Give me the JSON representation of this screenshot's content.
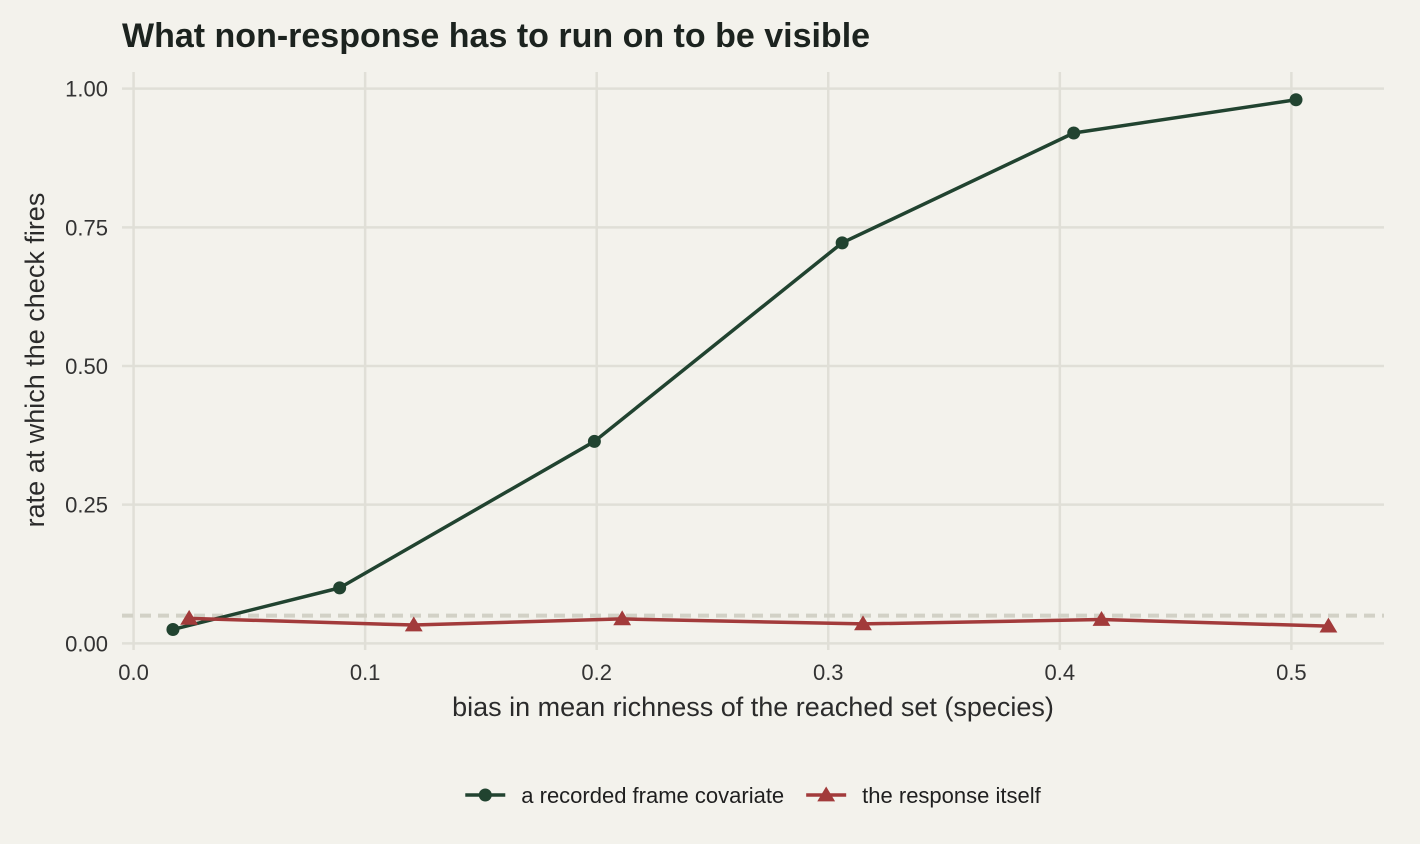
{
  "chart_data": {
    "type": "line",
    "title": "What non-response has to run on to be visible",
    "xlabel": "bias in mean richness of the reached set (species)",
    "ylabel": "rate at which the check fires",
    "xlim": [
      -0.005,
      0.54
    ],
    "ylim": [
      -0.012,
      1.03
    ],
    "x_ticks": [
      {
        "value": 0.0,
        "label": "0.0"
      },
      {
        "value": 0.1,
        "label": "0.1"
      },
      {
        "value": 0.2,
        "label": "0.2"
      },
      {
        "value": 0.3,
        "label": "0.3"
      },
      {
        "value": 0.4,
        "label": "0.4"
      },
      {
        "value": 0.5,
        "label": "0.5"
      }
    ],
    "y_ticks": [
      {
        "value": 0.0,
        "label": "0.00"
      },
      {
        "value": 0.25,
        "label": "0.25"
      },
      {
        "value": 0.5,
        "label": "0.50"
      },
      {
        "value": 0.75,
        "label": "0.75"
      },
      {
        "value": 1.0,
        "label": "1.00"
      }
    ],
    "reference_line": {
      "y": 0.05,
      "style": "dashed",
      "color": "#d2d1c6"
    },
    "grid": true,
    "legend_position": "bottom",
    "series": [
      {
        "name": "a recorded frame covariate",
        "marker": "circle",
        "color": "#214330",
        "points": [
          {
            "x": 0.017,
            "y": 0.025
          },
          {
            "x": 0.089,
            "y": 0.1
          },
          {
            "x": 0.199,
            "y": 0.364
          },
          {
            "x": 0.306,
            "y": 0.722
          },
          {
            "x": 0.406,
            "y": 0.92
          },
          {
            "x": 0.502,
            "y": 0.98
          }
        ]
      },
      {
        "name": "the response itself",
        "marker": "triangle",
        "color": "#a23b3b",
        "points": [
          {
            "x": 0.024,
            "y": 0.045
          },
          {
            "x": 0.121,
            "y": 0.033
          },
          {
            "x": 0.211,
            "y": 0.044
          },
          {
            "x": 0.315,
            "y": 0.035
          },
          {
            "x": 0.418,
            "y": 0.043
          },
          {
            "x": 0.516,
            "y": 0.031
          }
        ]
      }
    ]
  }
}
